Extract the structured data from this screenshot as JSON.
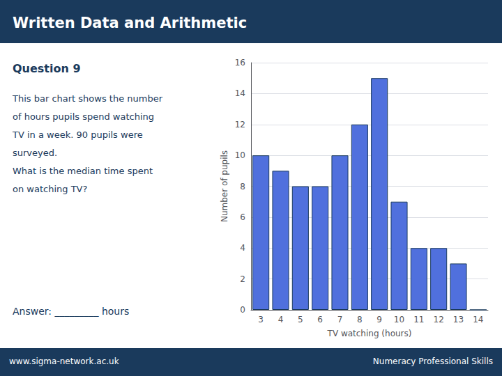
{
  "chart_data": {
    "type": "bar",
    "title": "Written Data and Arithmetic",
    "annotations": [
      "Question 9",
      "This bar chart shows the number",
      "of hours pupils spend watching",
      "TV in a week. 90 pupils were",
      "surveyed.",
      "What is the median time spent",
      "on watching TV?",
      "Answer: _________ hours",
      "www.sigma-network.ac.uk",
      "Numeracy Professional Skills"
    ],
    "xlabel": "TV watching (hours)",
    "ylabel": "Number of pupils",
    "categories": [
      3,
      4,
      5,
      6,
      7,
      8,
      9,
      10,
      11,
      12,
      13,
      14
    ],
    "values": [
      10,
      9,
      8,
      8,
      10,
      12,
      15,
      7,
      4,
      4,
      3,
      0
    ],
    "ylim": [
      0,
      16
    ],
    "yticks": [
      0,
      2,
      4,
      6,
      8,
      10,
      12,
      14,
      16
    ],
    "grid": true
  }
}
